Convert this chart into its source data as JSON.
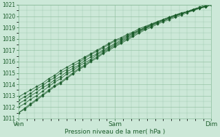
{
  "title": "",
  "xlabel": "Pression niveau de la mer( hPa )",
  "ylim": [
    1011,
    1021
  ],
  "xlim": [
    0,
    48
  ],
  "yticks": [
    1011,
    1012,
    1013,
    1014,
    1015,
    1016,
    1017,
    1018,
    1019,
    1020,
    1021
  ],
  "xtick_positions": [
    0,
    24,
    48
  ],
  "xtick_labels": [
    "Ven",
    "Sam",
    "Dim"
  ],
  "bg_color": "#cce8d8",
  "grid_color": "#88bb99",
  "line_color": "#1a5c2a",
  "marker_color": "#1a5c2a",
  "series": [
    [
      1011.5,
      1011.9,
      1012.3,
      1012.7,
      1013.1,
      1013.5,
      1013.9,
      1014.2,
      1014.6,
      1015.0,
      1015.4,
      1015.7,
      1016.1,
      1016.4,
      1016.8,
      1017.1,
      1017.4,
      1017.7,
      1018.0,
      1018.3,
      1018.6,
      1018.9,
      1019.1,
      1019.4,
      1019.6,
      1019.8,
      1020.0,
      1020.2,
      1020.4,
      1020.6,
      1020.8,
      1021.0,
      1021.1
    ],
    [
      1012.0,
      1012.3,
      1012.7,
      1013.0,
      1013.4,
      1013.8,
      1014.2,
      1014.5,
      1014.9,
      1015.2,
      1015.6,
      1015.9,
      1016.2,
      1016.6,
      1016.9,
      1017.2,
      1017.5,
      1017.8,
      1018.1,
      1018.4,
      1018.7,
      1018.9,
      1019.2,
      1019.4,
      1019.6,
      1019.8,
      1020.0,
      1020.2,
      1020.4,
      1020.6,
      1020.7,
      1020.9,
      1021.0
    ],
    [
      1012.3,
      1012.6,
      1013.0,
      1013.3,
      1013.7,
      1014.0,
      1014.4,
      1014.7,
      1015.1,
      1015.4,
      1015.7,
      1016.1,
      1016.4,
      1016.7,
      1017.0,
      1017.3,
      1017.6,
      1017.9,
      1018.2,
      1018.5,
      1018.7,
      1019.0,
      1019.2,
      1019.5,
      1019.7,
      1019.9,
      1020.1,
      1020.3,
      1020.4,
      1020.6,
      1020.7,
      1020.9,
      1021.0
    ],
    [
      1012.6,
      1012.9,
      1013.2,
      1013.6,
      1013.9,
      1014.3,
      1014.6,
      1015.0,
      1015.3,
      1015.6,
      1015.9,
      1016.3,
      1016.6,
      1016.9,
      1017.2,
      1017.5,
      1017.8,
      1018.0,
      1018.3,
      1018.5,
      1018.8,
      1019.0,
      1019.3,
      1019.5,
      1019.7,
      1019.9,
      1020.1,
      1020.2,
      1020.4,
      1020.5,
      1020.7,
      1020.8,
      1021.0
    ],
    [
      1012.9,
      1013.2,
      1013.5,
      1013.8,
      1014.1,
      1014.5,
      1014.8,
      1015.2,
      1015.5,
      1015.8,
      1016.1,
      1016.4,
      1016.7,
      1017.0,
      1017.3,
      1017.6,
      1017.9,
      1018.1,
      1018.4,
      1018.6,
      1018.9,
      1019.1,
      1019.3,
      1019.5,
      1019.7,
      1019.9,
      1020.1,
      1020.2,
      1020.4,
      1020.5,
      1020.7,
      1020.8,
      1021.0
    ],
    [
      1011.5,
      1011.8,
      1012.2,
      1012.6,
      1013.0,
      1013.4,
      1013.8,
      1014.1,
      1014.5,
      1014.9,
      1015.3,
      1015.6,
      1016.0,
      1016.3,
      1016.7,
      1017.0,
      1017.3,
      1017.6,
      1017.9,
      1018.2,
      1018.5,
      1018.8,
      1019.0,
      1019.3,
      1019.5,
      1019.7,
      1019.9,
      1020.1,
      1020.3,
      1020.5,
      1020.7,
      1020.9,
      1021.1
    ]
  ]
}
